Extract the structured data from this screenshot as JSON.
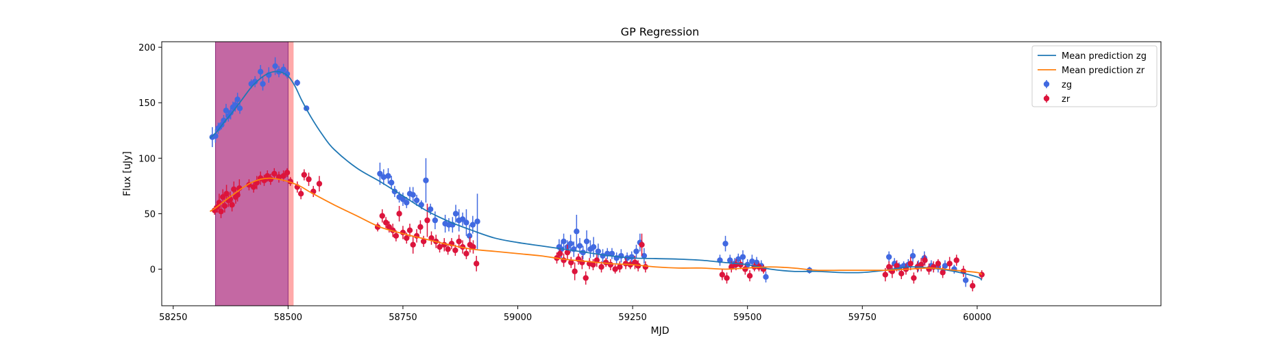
{
  "chart_data": {
    "type": "scatter",
    "title": "GP Regression",
    "xlabel": "MJD",
    "ylabel": "Flux [uJy]",
    "xlim": [
      58225,
      60400
    ],
    "ylim": [
      -33,
      205
    ],
    "xticks": [
      58250,
      58500,
      58750,
      59000,
      59250,
      59500,
      59750,
      60000
    ],
    "yticks": [
      0,
      50,
      100,
      150,
      200
    ],
    "grid": false,
    "legend_position": "top-right",
    "shaded_regions": [
      {
        "x0": 58342,
        "x1": 58512,
        "color": "#ff9a9a",
        "opacity": 0.85
      },
      {
        "x0": 58342,
        "x1": 58500,
        "color": "#a040a0",
        "opacity": 0.62
      }
    ],
    "lines": [
      {
        "name": "Mean prediction zg",
        "color": "#1f77b4",
        "x": [
          58330,
          58345,
          58360,
          58380,
          58400,
          58420,
          58440,
          58460,
          58480,
          58500,
          58515,
          58530,
          58550,
          58575,
          58600,
          58650,
          58700,
          58750,
          58800,
          58850,
          58900,
          58950,
          59000,
          59050,
          59100,
          59150,
          59200,
          59250,
          59300,
          59350,
          59400,
          59450,
          59500,
          59550,
          59600,
          59650,
          59700,
          59750,
          59800,
          59850,
          59900,
          59950,
          60000,
          60010
        ],
        "y": [
          118,
          124,
          132,
          142,
          153,
          164,
          172,
          177,
          178,
          174,
          165,
          152,
          137,
          121,
          108,
          91,
          79,
          66,
          53,
          43,
          35,
          28,
          24,
          21,
          18,
          15,
          12,
          10,
          9.5,
          9,
          8,
          6,
          4,
          0,
          -2,
          -2,
          -3,
          -3,
          -1,
          2,
          1,
          -2,
          -7,
          -10
        ]
      },
      {
        "name": "Mean prediction zr",
        "color": "#ff7f0e",
        "x": [
          58330,
          58345,
          58360,
          58380,
          58400,
          58420,
          58440,
          58460,
          58480,
          58500,
          58525,
          58550,
          58600,
          58650,
          58700,
          58750,
          58800,
          58850,
          58900,
          58950,
          59000,
          59050,
          59100,
          59150,
          59200,
          59250,
          59300,
          59350,
          59400,
          59450,
          59500,
          59550,
          59600,
          59650,
          59700,
          59750,
          59800,
          59850,
          59900,
          59950,
          60000,
          60010
        ],
        "y": [
          52,
          56,
          61,
          67,
          73,
          78,
          81,
          82,
          81,
          79,
          75,
          69,
          58,
          48,
          38,
          32,
          27,
          22,
          18,
          16,
          14,
          12,
          9,
          7,
          5,
          4,
          2,
          1,
          1,
          0,
          1,
          2,
          1,
          -1,
          -1,
          -1,
          -1,
          0,
          1,
          -1,
          -3,
          -5
        ]
      }
    ],
    "series": [
      {
        "name": "zg",
        "color": "#4169e1",
        "points": [
          [
            58335,
            119,
            9
          ],
          [
            58342,
            120,
            6
          ],
          [
            58348,
            127,
            5
          ],
          [
            58355,
            130,
            4
          ],
          [
            58360,
            134,
            5
          ],
          [
            58365,
            143,
            6
          ],
          [
            58370,
            138,
            5
          ],
          [
            58375,
            141,
            6
          ],
          [
            58380,
            146,
            5
          ],
          [
            58385,
            148,
            6
          ],
          [
            58390,
            153,
            6
          ],
          [
            58395,
            145,
            5
          ],
          [
            58420,
            167,
            4
          ],
          [
            58428,
            169,
            5
          ],
          [
            58440,
            178,
            6
          ],
          [
            58445,
            167,
            6
          ],
          [
            58458,
            175,
            7
          ],
          [
            58472,
            183,
            8
          ],
          [
            58480,
            178,
            5
          ],
          [
            58490,
            180,
            5
          ],
          [
            58498,
            176,
            4
          ],
          [
            58520,
            168,
            3
          ],
          [
            58540,
            145,
            2
          ],
          [
            58700,
            86,
            10
          ],
          [
            58708,
            83,
            7
          ],
          [
            58718,
            84,
            7
          ],
          [
            58725,
            78,
            6
          ],
          [
            58732,
            70,
            5
          ],
          [
            58742,
            65,
            5
          ],
          [
            58750,
            63,
            6
          ],
          [
            58758,
            60,
            5
          ],
          [
            58765,
            68,
            6
          ],
          [
            58772,
            67,
            7
          ],
          [
            58780,
            62,
            5
          ],
          [
            58790,
            58,
            4
          ],
          [
            58800,
            80,
            20
          ],
          [
            58810,
            54,
            5
          ],
          [
            58820,
            44,
            8
          ],
          [
            58842,
            41,
            8
          ],
          [
            58850,
            40,
            6
          ],
          [
            58858,
            40,
            7
          ],
          [
            58865,
            50,
            8
          ],
          [
            58872,
            44,
            10
          ],
          [
            58880,
            45,
            6
          ],
          [
            58888,
            42,
            12
          ],
          [
            58895,
            30,
            10
          ],
          [
            58902,
            40,
            8
          ],
          [
            58912,
            43,
            25
          ],
          [
            59090,
            20,
            7
          ],
          [
            59095,
            18,
            8
          ],
          [
            59100,
            25,
            7
          ],
          [
            59108,
            20,
            6
          ],
          [
            59115,
            23,
            8
          ],
          [
            59122,
            18,
            7
          ],
          [
            59128,
            34,
            15
          ],
          [
            59135,
            21,
            7
          ],
          [
            59142,
            15,
            6
          ],
          [
            59150,
            25,
            10
          ],
          [
            59158,
            18,
            8
          ],
          [
            59165,
            20,
            9
          ],
          [
            59175,
            16,
            7
          ],
          [
            59185,
            12,
            6
          ],
          [
            59195,
            14,
            5
          ],
          [
            59205,
            14,
            5
          ],
          [
            59215,
            10,
            5
          ],
          [
            59225,
            12,
            6
          ],
          [
            59238,
            10,
            5
          ],
          [
            59248,
            11,
            5
          ],
          [
            59258,
            16,
            6
          ],
          [
            59266,
            24,
            8
          ],
          [
            59275,
            12,
            7
          ],
          [
            59440,
            8,
            5
          ],
          [
            59452,
            23,
            7
          ],
          [
            59462,
            8,
            5
          ],
          [
            59472,
            5,
            5
          ],
          [
            59480,
            9,
            5
          ],
          [
            59490,
            11,
            6
          ],
          [
            59500,
            4,
            5
          ],
          [
            59510,
            7,
            6
          ],
          [
            59520,
            6,
            5
          ],
          [
            59530,
            3,
            5
          ],
          [
            59540,
            -7,
            5
          ],
          [
            59635,
            -1,
            3
          ],
          [
            59808,
            11,
            5
          ],
          [
            59820,
            5,
            5
          ],
          [
            59830,
            2,
            4
          ],
          [
            59840,
            3,
            4
          ],
          [
            59850,
            4,
            5
          ],
          [
            59860,
            12,
            6
          ],
          [
            59872,
            3,
            5
          ],
          [
            59885,
            10,
            6
          ],
          [
            59900,
            3,
            5
          ],
          [
            59915,
            2,
            5
          ],
          [
            59930,
            3,
            5
          ],
          [
            59950,
            0,
            4
          ],
          [
            59975,
            -10,
            6
          ]
        ]
      },
      {
        "name": "zr",
        "color": "#dc143c",
        "points": [
          [
            58340,
            53,
            4
          ],
          [
            58346,
            56,
            5
          ],
          [
            58350,
            60,
            8
          ],
          [
            58354,
            52,
            6
          ],
          [
            58358,
            65,
            7
          ],
          [
            58362,
            57,
            6
          ],
          [
            58366,
            68,
            8
          ],
          [
            58370,
            62,
            6
          ],
          [
            58374,
            63,
            7
          ],
          [
            58378,
            58,
            6
          ],
          [
            58382,
            72,
            7
          ],
          [
            58386,
            65,
            6
          ],
          [
            58390,
            67,
            6
          ],
          [
            58394,
            73,
            8
          ],
          [
            58415,
            76,
            5
          ],
          [
            58425,
            74,
            5
          ],
          [
            58432,
            78,
            6
          ],
          [
            58440,
            82,
            6
          ],
          [
            58448,
            80,
            5
          ],
          [
            58455,
            84,
            5
          ],
          [
            58462,
            81,
            5
          ],
          [
            58470,
            86,
            5
          ],
          [
            58480,
            83,
            5
          ],
          [
            58490,
            84,
            5
          ],
          [
            58498,
            87,
            4
          ],
          [
            58505,
            79,
            4
          ],
          [
            58520,
            74,
            5
          ],
          [
            58528,
            68,
            5
          ],
          [
            58535,
            85,
            5
          ],
          [
            58545,
            81,
            6
          ],
          [
            58555,
            70,
            5
          ],
          [
            58568,
            77,
            7
          ],
          [
            58695,
            38,
            4
          ],
          [
            58705,
            48,
            6
          ],
          [
            58713,
            42,
            5
          ],
          [
            58720,
            38,
            5
          ],
          [
            58728,
            35,
            6
          ],
          [
            58735,
            30,
            5
          ],
          [
            58742,
            50,
            7
          ],
          [
            58750,
            33,
            6
          ],
          [
            58758,
            28,
            5
          ],
          [
            58765,
            35,
            6
          ],
          [
            58772,
            22,
            8
          ],
          [
            58780,
            30,
            6
          ],
          [
            58788,
            38,
            6
          ],
          [
            58795,
            25,
            5
          ],
          [
            58803,
            44,
            15
          ],
          [
            58812,
            28,
            6
          ],
          [
            58822,
            25,
            6
          ],
          [
            58830,
            20,
            5
          ],
          [
            58840,
            22,
            6
          ],
          [
            58848,
            18,
            5
          ],
          [
            58856,
            23,
            5
          ],
          [
            58864,
            17,
            5
          ],
          [
            58872,
            25,
            6
          ],
          [
            58880,
            20,
            6
          ],
          [
            58888,
            14,
            5
          ],
          [
            58896,
            22,
            7
          ],
          [
            58903,
            20,
            6
          ],
          [
            58910,
            5,
            7
          ],
          [
            59085,
            10,
            5
          ],
          [
            59092,
            14,
            5
          ],
          [
            59100,
            8,
            6
          ],
          [
            59108,
            15,
            7
          ],
          [
            59116,
            6,
            5
          ],
          [
            59124,
            -2,
            8
          ],
          [
            59132,
            9,
            5
          ],
          [
            59140,
            6,
            6
          ],
          [
            59148,
            -8,
            6
          ],
          [
            59156,
            5,
            5
          ],
          [
            59164,
            4,
            5
          ],
          [
            59172,
            8,
            6
          ],
          [
            59182,
            2,
            5
          ],
          [
            59192,
            6,
            4
          ],
          [
            59202,
            4,
            5
          ],
          [
            59212,
            0,
            4
          ],
          [
            59222,
            2,
            5
          ],
          [
            59235,
            5,
            5
          ],
          [
            59245,
            4,
            4
          ],
          [
            59255,
            6,
            6
          ],
          [
            59262,
            3,
            5
          ],
          [
            59270,
            22,
            10
          ],
          [
            59278,
            2,
            5
          ],
          [
            59445,
            -5,
            5
          ],
          [
            59455,
            -8,
            5
          ],
          [
            59465,
            2,
            5
          ],
          [
            59475,
            4,
            5
          ],
          [
            59485,
            4,
            4
          ],
          [
            59495,
            0,
            5
          ],
          [
            59505,
            -6,
            5
          ],
          [
            59515,
            2,
            4
          ],
          [
            59525,
            2,
            4
          ],
          [
            59535,
            0,
            4
          ],
          [
            59800,
            -5,
            6
          ],
          [
            59808,
            2,
            5
          ],
          [
            59815,
            -2,
            6
          ],
          [
            59825,
            3,
            5
          ],
          [
            59835,
            -4,
            5
          ],
          [
            59845,
            0,
            5
          ],
          [
            59855,
            5,
            6
          ],
          [
            59862,
            -8,
            5
          ],
          [
            59870,
            2,
            5
          ],
          [
            59878,
            4,
            6
          ],
          [
            59886,
            8,
            5
          ],
          [
            59895,
            0,
            5
          ],
          [
            59905,
            2,
            5
          ],
          [
            59915,
            5,
            4
          ],
          [
            59925,
            -3,
            5
          ],
          [
            59940,
            5,
            6
          ],
          [
            59955,
            8,
            5
          ],
          [
            59970,
            -2,
            5
          ],
          [
            59990,
            -15,
            5
          ],
          [
            60010,
            -5,
            4
          ]
        ]
      }
    ]
  }
}
